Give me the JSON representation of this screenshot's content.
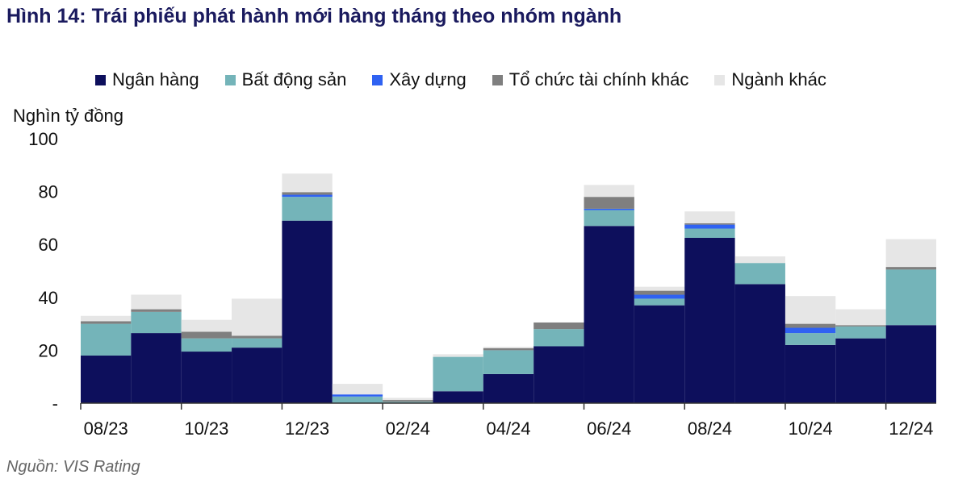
{
  "title": "Hình 14: Trái phiếu phát hành mới hàng tháng theo nhóm ngành",
  "unit_label": "Nghìn tỷ đồng",
  "source": "Nguồn: VIS Rating",
  "legend": [
    {
      "label": "Ngân hàng",
      "color": "#0d0f5c"
    },
    {
      "label": "Bất động sản",
      "color": "#74b4b9"
    },
    {
      "label": "Xây dựng",
      "color": "#2f62f2"
    },
    {
      "label": "Tổ chức tài chính khác",
      "color": "#7f7f7f"
    },
    {
      "label": "Ngành khác",
      "color": "#e6e6e6"
    }
  ],
  "chart_data": {
    "type": "bar",
    "stacked": true,
    "categories": [
      "08/23",
      "09/23",
      "10/23",
      "11/23",
      "12/23",
      "01/24",
      "02/24",
      "03/24",
      "04/24",
      "05/24",
      "06/24",
      "07/24",
      "08/24",
      "09/24",
      "10/24",
      "11/24",
      "12/24"
    ],
    "x_tick_labels": [
      "08/23",
      "",
      "10/23",
      "",
      "12/23",
      "",
      "02/24",
      "",
      "04/24",
      "",
      "06/24",
      "",
      "08/24",
      "",
      "10/24",
      "",
      "12/24"
    ],
    "y_tick_labels": [
      "-",
      "20",
      "40",
      "60",
      "80",
      "100"
    ],
    "y_ticks": [
      0,
      20,
      40,
      60,
      80,
      100
    ],
    "ylim": [
      0,
      100
    ],
    "series": [
      {
        "name": "Ngân hàng",
        "color": "#0d0f5c",
        "values": [
          18,
          26.5,
          19.5,
          21,
          69,
          0,
          0,
          4.5,
          11,
          21.5,
          67,
          37,
          62.5,
          45,
          22,
          24.5,
          29.5
        ]
      },
      {
        "name": "Bất động sản",
        "color": "#74b4b9",
        "values": [
          12,
          8,
          5,
          3.5,
          9,
          2.5,
          0.5,
          13,
          9,
          6.5,
          6,
          2.5,
          3.5,
          8,
          4.5,
          4.5,
          21
        ]
      },
      {
        "name": "Xây dựng",
        "color": "#2f62f2",
        "values": [
          0,
          0,
          0,
          0,
          0.8,
          0.8,
          0,
          0,
          0,
          0,
          0.5,
          1.5,
          1.5,
          0,
          2,
          0,
          0
        ]
      },
      {
        "name": "Tổ chức tài chính khác",
        "color": "#7f7f7f",
        "values": [
          1,
          1,
          2.5,
          1,
          1,
          0,
          0.7,
          0,
          0.8,
          2.5,
          4.5,
          1.5,
          0.5,
          0,
          1.5,
          0.5,
          1
        ]
      },
      {
        "name": "Ngành khác",
        "color": "#e6e6e6",
        "values": [
          2,
          5.5,
          4.5,
          14,
          7,
          4,
          0.8,
          1,
          0.5,
          0,
          4.5,
          1.5,
          4.5,
          2.5,
          10.5,
          6,
          10.5
        ]
      }
    ]
  }
}
